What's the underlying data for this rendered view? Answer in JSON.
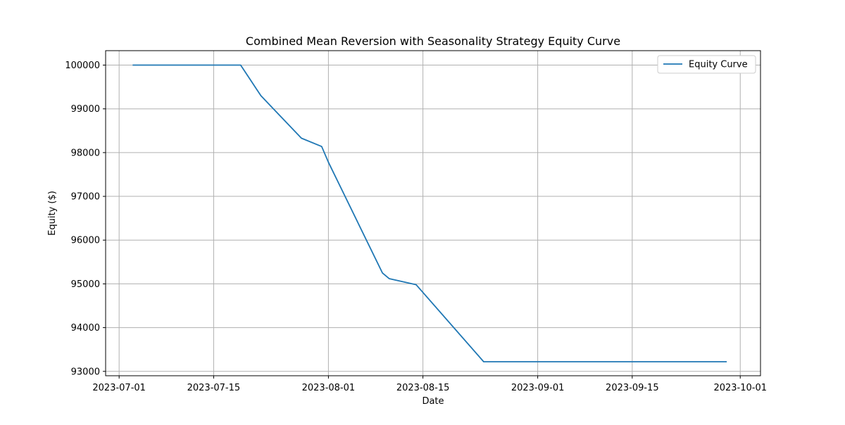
{
  "chart_data": {
    "type": "line",
    "title": "Combined Mean Reversion with Seasonality Strategy Equity Curve",
    "xlabel": "Date",
    "ylabel": "Equity ($)",
    "x_axis_kind": "date",
    "xlim": [
      "2023-06-29",
      "2023-10-04"
    ],
    "ylim": [
      92900,
      100330
    ],
    "x_ticks": [
      "2023-07-01",
      "2023-07-15",
      "2023-08-01",
      "2023-08-15",
      "2023-09-01",
      "2023-09-15",
      "2023-10-01"
    ],
    "y_ticks": [
      93000,
      94000,
      95000,
      96000,
      97000,
      98000,
      99000,
      100000
    ],
    "grid": true,
    "legend_position": "top-right",
    "series": [
      {
        "name": "Equity Curve",
        "color": "#1f77b4",
        "x": [
          "2023-07-03",
          "2023-07-19",
          "2023-07-22",
          "2023-07-28",
          "2023-07-31",
          "2023-08-01",
          "2023-08-09",
          "2023-08-10",
          "2023-08-14",
          "2023-08-24",
          "2023-09-29"
        ],
        "y": [
          100000,
          100000,
          99300,
          98330,
          98140,
          97780,
          95250,
          95120,
          94980,
          93220,
          93220
        ]
      }
    ]
  }
}
